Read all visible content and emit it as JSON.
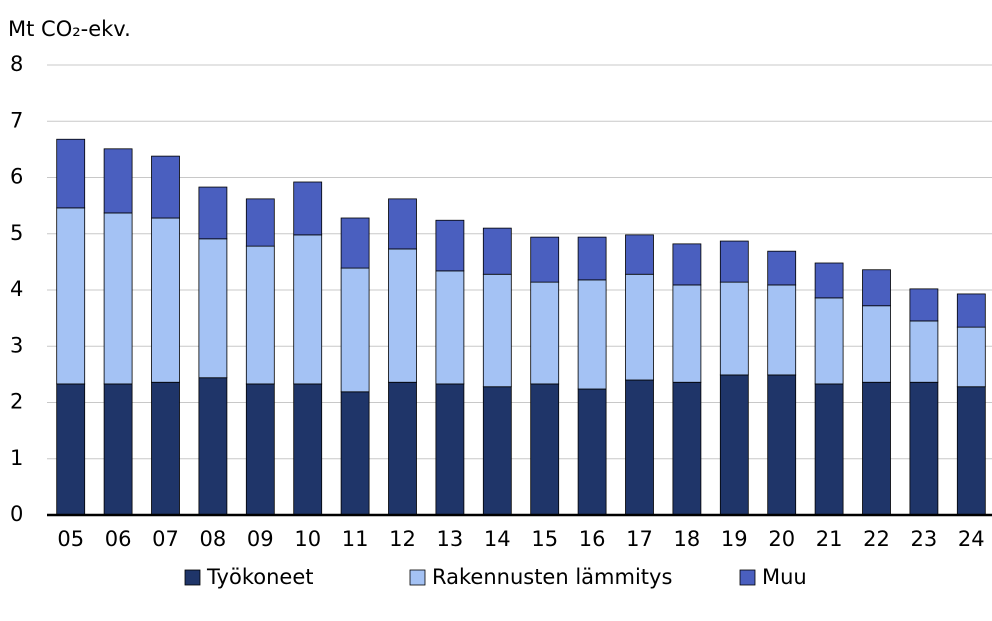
{
  "chart_data": {
    "type": "stacked_bar",
    "y_axis_label": "Mt CO₂-ekv.",
    "categories": [
      "05",
      "06",
      "07",
      "08",
      "09",
      "10",
      "11",
      "12",
      "13",
      "14",
      "15",
      "16",
      "17",
      "18",
      "19",
      "20",
      "21",
      "22",
      "23",
      "24"
    ],
    "series": [
      {
        "name": "Työkoneet",
        "color": "#1f3569",
        "values": [
          2.33,
          2.33,
          2.36,
          2.44,
          2.33,
          2.33,
          2.19,
          2.36,
          2.33,
          2.28,
          2.33,
          2.24,
          2.4,
          2.36,
          2.49,
          2.49,
          2.33,
          2.36,
          2.36,
          2.28
        ]
      },
      {
        "name": "Rakennusten lämmitys",
        "color": "#a4c2f4",
        "values": [
          3.13,
          3.04,
          2.92,
          2.47,
          2.45,
          2.65,
          2.2,
          2.37,
          2.01,
          2.0,
          1.81,
          1.94,
          1.88,
          1.73,
          1.65,
          1.6,
          1.53,
          1.36,
          1.09,
          1.06
        ]
      },
      {
        "name": "Muu",
        "color": "#4a5fbf",
        "values": [
          1.22,
          1.14,
          1.1,
          0.92,
          0.84,
          0.94,
          0.89,
          0.89,
          0.9,
          0.82,
          0.8,
          0.76,
          0.7,
          0.73,
          0.73,
          0.6,
          0.62,
          0.64,
          0.57,
          0.59
        ]
      }
    ],
    "ylim": [
      0,
      8
    ],
    "yticks": [
      0,
      1,
      2,
      3,
      4,
      5,
      6,
      7,
      8
    ],
    "grid": true,
    "legend": "bottom"
  }
}
